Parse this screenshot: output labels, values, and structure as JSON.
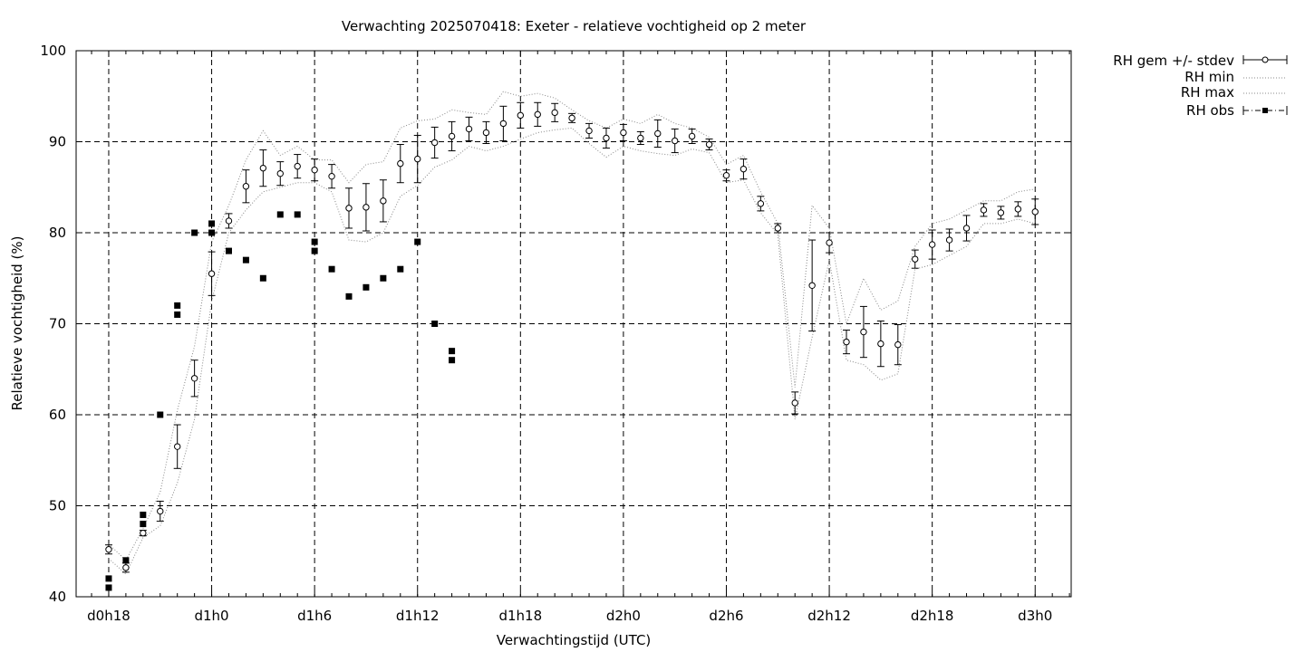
{
  "chart_data": {
    "type": "line",
    "title": "Verwachting 2025070418: Exeter - relatieve vochtigheid op 2 meter",
    "xlabel": "Verwachtingstijd (UTC)",
    "ylabel": "Relatieve vochtigheid (%)",
    "x_ticks": [
      "d0h18",
      "d1h0",
      "d1h6",
      "d1h12",
      "d1h18",
      "d2h0",
      "d2h6",
      "d2h12",
      "d2h18",
      "d3h0"
    ],
    "y_ticks": [
      "40",
      "50",
      "60",
      "70",
      "80",
      "90",
      "100"
    ],
    "xlim": [
      -1.9,
      56.1
    ],
    "ylim": [
      40,
      100
    ],
    "grid": true,
    "legend_position": "outside-top-right",
    "legend": [
      "RH gem +/- stdev",
      "RH min",
      "RH max",
      "RH obs"
    ],
    "series": [
      {
        "name": "RH gem +/- stdev",
        "x": [
          0,
          1,
          2,
          3,
          4,
          5,
          6,
          7,
          8,
          9,
          10,
          11,
          12,
          13,
          14,
          15,
          16,
          17,
          18,
          19,
          20,
          21,
          22,
          23,
          24,
          25,
          26,
          27,
          28,
          29,
          30,
          31,
          32,
          33,
          34,
          35,
          36,
          37,
          38,
          39,
          40,
          41,
          42,
          43,
          44,
          45,
          46,
          47,
          48,
          49,
          50,
          51,
          52,
          53,
          54
        ],
        "mean": [
          45.2,
          43.2,
          47.0,
          49.4,
          56.5,
          64.0,
          75.5,
          81.3,
          85.1,
          87.1,
          86.5,
          87.3,
          86.9,
          86.2,
          82.7,
          82.8,
          83.5,
          87.6,
          88.1,
          89.9,
          90.6,
          91.4,
          91.0,
          92.0,
          92.9,
          93.0,
          93.2,
          92.6,
          91.2,
          90.4,
          91.0,
          90.4,
          90.9,
          90.1,
          90.6,
          89.7,
          86.3,
          87.0,
          83.2,
          80.5,
          61.3,
          74.2,
          78.9,
          68.0,
          69.1,
          67.8,
          67.7,
          77.1,
          78.7,
          79.2,
          80.5,
          82.5,
          82.2,
          82.6,
          82.3
        ],
        "stdev": [
          0.5,
          0.5,
          0.3,
          1.1,
          2.4,
          2.0,
          2.4,
          0.8,
          1.8,
          2.0,
          1.3,
          1.3,
          1.2,
          1.3,
          2.2,
          2.6,
          2.3,
          2.1,
          2.6,
          1.7,
          1.6,
          1.3,
          1.2,
          1.9,
          1.4,
          1.3,
          1.0,
          0.5,
          0.8,
          1.1,
          0.9,
          0.7,
          1.5,
          1.3,
          0.8,
          0.6,
          0.6,
          1.1,
          0.8,
          0.5,
          1.2,
          5.0,
          1.1,
          1.3,
          2.8,
          2.5,
          2.2,
          1.0,
          1.6,
          1.2,
          1.4,
          0.7,
          0.7,
          0.8,
          1.4
        ]
      },
      {
        "name": "RH min",
        "x": [
          0,
          1,
          2,
          3,
          4,
          5,
          6,
          7,
          8,
          9,
          10,
          11,
          12,
          13,
          14,
          15,
          16,
          17,
          18,
          19,
          20,
          21,
          22,
          23,
          24,
          25,
          26,
          27,
          28,
          29,
          30,
          31,
          32,
          33,
          34,
          35,
          36,
          37,
          38,
          39,
          40,
          41,
          42,
          43,
          44,
          45,
          46,
          47,
          48,
          49,
          50,
          51,
          52,
          53,
          54
        ],
        "values": [
          44.2,
          42.5,
          46.5,
          47.8,
          52.5,
          59.5,
          72.5,
          80.0,
          82.5,
          84.5,
          85.0,
          85.5,
          85.5,
          84.5,
          79.2,
          79.0,
          80.0,
          84.0,
          85.2,
          87.2,
          88.0,
          89.5,
          89.0,
          89.5,
          90.3,
          91.0,
          91.3,
          91.5,
          89.8,
          88.3,
          89.5,
          89.0,
          88.7,
          88.5,
          89.2,
          88.8,
          85.5,
          85.8,
          82.2,
          79.8,
          59.5,
          68.5,
          77.0,
          66.0,
          65.5,
          63.8,
          64.5,
          76.0,
          76.5,
          77.5,
          78.5,
          81.0,
          81.0,
          81.5,
          81.0
        ]
      },
      {
        "name": "RH max",
        "x": [
          0,
          1,
          2,
          3,
          4,
          5,
          6,
          7,
          8,
          9,
          10,
          11,
          12,
          13,
          14,
          15,
          16,
          17,
          18,
          19,
          20,
          21,
          22,
          23,
          24,
          25,
          26,
          27,
          28,
          29,
          30,
          31,
          32,
          33,
          34,
          35,
          36,
          37,
          38,
          39,
          40,
          41,
          42,
          43,
          44,
          45,
          46,
          47,
          48,
          49,
          50,
          51,
          52,
          53,
          54
        ],
        "values": [
          45.8,
          44.0,
          47.5,
          51.5,
          60.5,
          67.5,
          79.0,
          83.0,
          88.0,
          91.2,
          88.5,
          89.5,
          88.0,
          88.0,
          85.5,
          87.5,
          87.8,
          91.5,
          92.3,
          92.5,
          93.5,
          93.2,
          93.0,
          95.5,
          95.0,
          95.3,
          94.8,
          93.5,
          92.3,
          91.5,
          92.5,
          92.0,
          93.0,
          92.0,
          91.5,
          90.5,
          87.5,
          88.5,
          84.5,
          81.0,
          63.0,
          83.0,
          80.5,
          70.0,
          75.0,
          71.5,
          72.5,
          78.5,
          81.0,
          81.5,
          82.5,
          83.5,
          83.5,
          84.5,
          84.8
        ]
      },
      {
        "name": "RH obs",
        "points": [
          [
            0,
            42
          ],
          [
            0,
            41
          ],
          [
            1,
            44
          ],
          [
            2,
            49
          ],
          [
            2,
            48
          ],
          [
            3,
            60
          ],
          [
            4,
            72
          ],
          [
            4,
            71
          ],
          [
            5,
            80
          ],
          [
            6,
            81
          ],
          [
            6,
            80
          ],
          [
            7,
            78
          ],
          [
            8,
            77
          ],
          [
            9,
            75
          ],
          [
            10,
            82
          ],
          [
            11,
            82
          ],
          [
            12,
            79
          ],
          [
            12,
            78
          ],
          [
            13,
            76
          ],
          [
            14,
            73
          ],
          [
            15,
            74
          ],
          [
            16,
            75
          ],
          [
            17,
            76
          ],
          [
            18,
            79
          ],
          [
            19,
            70
          ],
          [
            20,
            67
          ],
          [
            20,
            66
          ]
        ]
      }
    ]
  }
}
